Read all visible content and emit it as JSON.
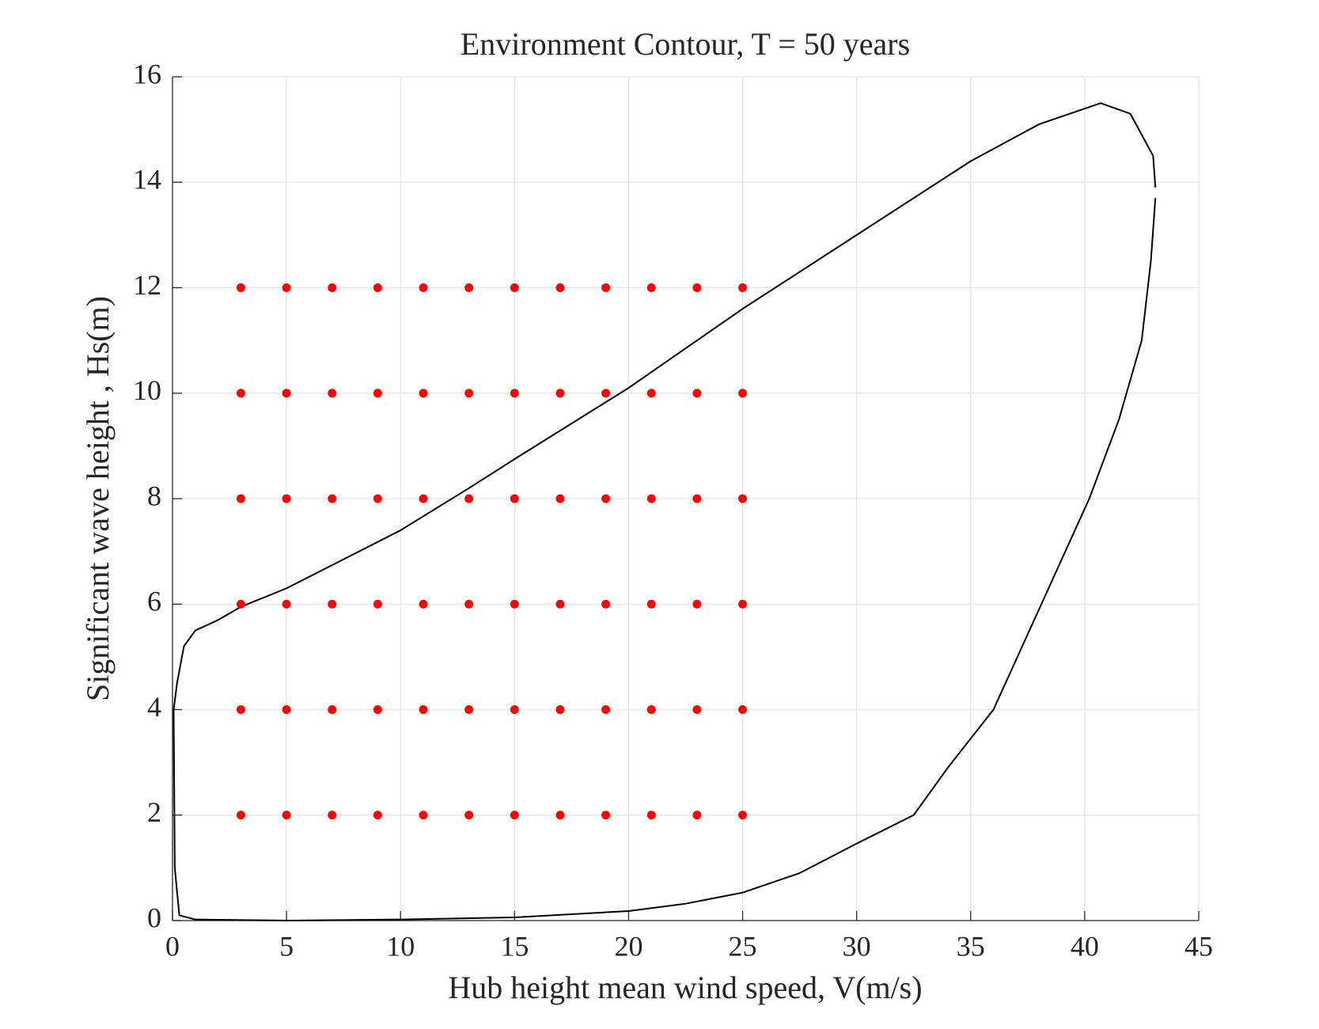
{
  "chart_data": {
    "type": "scatter",
    "title": "Environment Contour, T = 50 years",
    "x_label": "Hub height mean wind speed, V(m/s)",
    "y_label": "Significant wave height , Hs(m)",
    "xlim": [
      0,
      45
    ],
    "ylim": [
      0,
      16
    ],
    "xticks": [
      0,
      5,
      10,
      15,
      20,
      25,
      30,
      35,
      40,
      45
    ],
    "yticks": [
      0,
      2,
      4,
      6,
      8,
      10,
      12,
      14,
      16
    ],
    "grid": true,
    "series": [
      {
        "type": "line",
        "color": "#000000",
        "x": [
          43.1,
          42.9,
          42.5,
          41.5,
          40.2,
          38.1,
          36,
          34,
          32.5,
          30,
          27.5,
          25,
          22.5,
          20,
          15,
          10,
          5,
          1,
          0.3,
          0.1,
          0.05,
          0.2,
          0.5,
          1,
          2,
          3,
          5,
          10,
          13,
          15,
          20,
          25,
          30,
          35,
          38,
          40.7,
          42,
          43,
          43.1
        ],
        "y": [
          13.7,
          12.5,
          11,
          9.5,
          8,
          6,
          4,
          2.9,
          2,
          1.46,
          0.9,
          0.53,
          0.32,
          0.18,
          0.06,
          0.02,
          0,
          0.02,
          0.1,
          1,
          4,
          4.5,
          5.2,
          5.5,
          5.7,
          5.95,
          6.3,
          7.4,
          8.2,
          8.75,
          10.1,
          11.6,
          13.0,
          14.4,
          15.1,
          15.5,
          15.3,
          14.5,
          13.9
        ]
      },
      {
        "type": "scatter",
        "color": "#ff0000",
        "x": [
          3,
          5,
          7,
          9,
          11,
          13,
          15,
          17,
          19,
          21,
          23,
          25,
          3,
          5,
          7,
          9,
          11,
          13,
          15,
          17,
          19,
          21,
          23,
          25,
          3,
          5,
          7,
          9,
          11,
          13,
          15,
          17,
          19,
          21,
          23,
          25,
          3,
          5,
          7,
          9,
          11,
          13,
          15,
          17,
          19,
          21,
          23,
          25,
          3,
          5,
          7,
          9,
          11,
          13,
          15,
          17,
          19,
          21,
          23,
          25,
          3,
          5,
          7,
          9,
          11,
          13,
          15,
          17,
          19,
          21,
          23,
          25
        ],
        "y": [
          2,
          2,
          2,
          2,
          2,
          2,
          2,
          2,
          2,
          2,
          2,
          2,
          4,
          4,
          4,
          4,
          4,
          4,
          4,
          4,
          4,
          4,
          4,
          4,
          6,
          6,
          6,
          6,
          6,
          6,
          6,
          6,
          6,
          6,
          6,
          6,
          8,
          8,
          8,
          8,
          8,
          8,
          8,
          8,
          8,
          8,
          8,
          8,
          10,
          10,
          10,
          10,
          10,
          10,
          10,
          10,
          10,
          10,
          10,
          10,
          12,
          12,
          12,
          12,
          12,
          12,
          12,
          12,
          12,
          12,
          12,
          12
        ]
      }
    ]
  }
}
